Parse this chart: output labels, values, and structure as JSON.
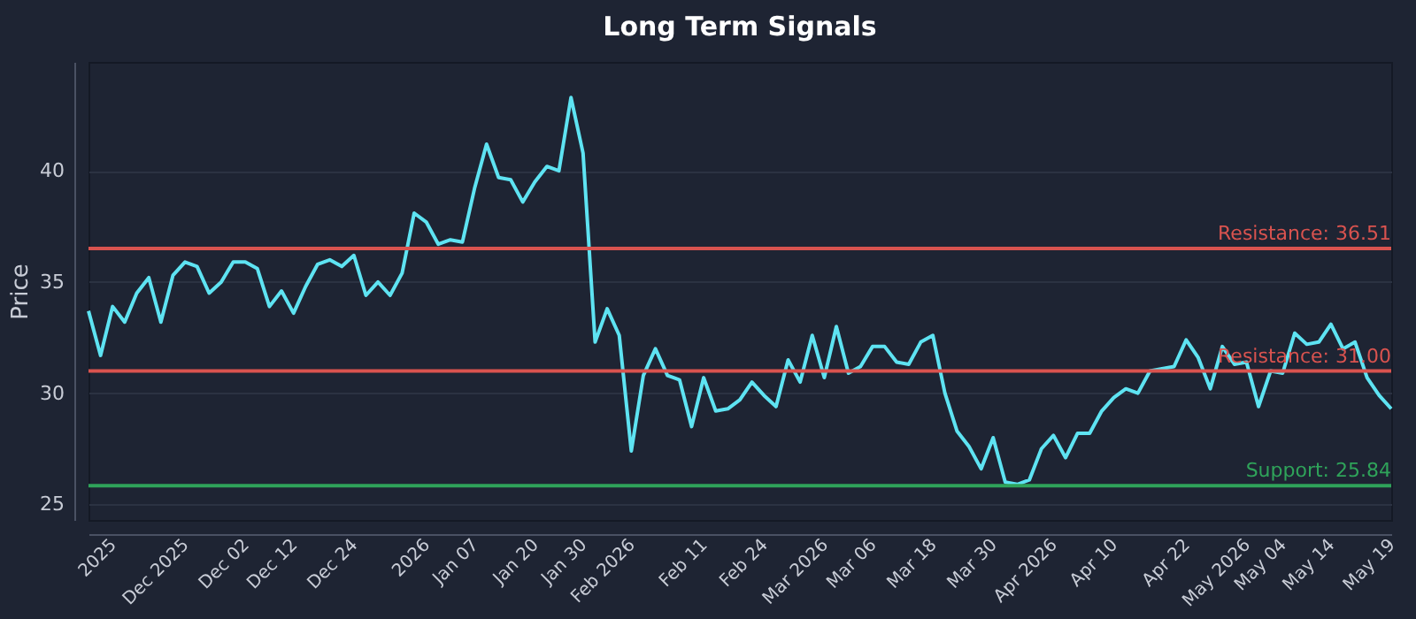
{
  "chart_data": {
    "type": "line",
    "title": "Long Term Signals",
    "ylabel": "Price",
    "categories": [
      null,
      null,
      "2025",
      null,
      null,
      null,
      null,
      null,
      "Dec 2025",
      null,
      null,
      null,
      null,
      "Dec 02",
      null,
      null,
      null,
      "Dec 12",
      null,
      null,
      null,
      null,
      "Dec 24",
      null,
      null,
      null,
      null,
      null,
      "2026",
      null,
      null,
      null,
      "Jan 07",
      null,
      null,
      null,
      null,
      "Jan 20",
      null,
      null,
      null,
      "Jan 30",
      null,
      null,
      null,
      "Feb 2026",
      null,
      null,
      null,
      null,
      null,
      "Feb 11",
      null,
      null,
      null,
      null,
      "Feb 24",
      null,
      null,
      null,
      null,
      "Mar 2026",
      null,
      null,
      null,
      "Mar 06",
      null,
      null,
      null,
      null,
      "Mar 18",
      null,
      null,
      null,
      null,
      "Mar 30",
      null,
      null,
      null,
      null,
      "Apr 2026",
      null,
      null,
      null,
      null,
      "Apr 10",
      null,
      null,
      null,
      null,
      null,
      "Apr 22",
      null,
      null,
      null,
      null,
      "May 2026",
      null,
      null,
      "May 04",
      null,
      null,
      null,
      "May 14",
      null,
      null,
      null,
      null,
      "May 19"
    ],
    "series": [
      {
        "color": "#5ee3f2",
        "values": [
          33.7,
          31.7,
          33.9,
          33.2,
          34.5,
          35.2,
          33.2,
          35.3,
          35.9,
          35.7,
          34.5,
          35.0,
          35.9,
          35.9,
          35.6,
          33.9,
          34.6,
          33.6,
          34.8,
          35.8,
          36.0,
          35.7,
          36.2,
          34.4,
          35.0,
          34.4,
          35.4,
          38.1,
          37.7,
          36.7,
          36.9,
          36.8,
          39.2,
          41.2,
          39.7,
          39.6,
          38.6,
          39.5,
          40.2,
          40.0,
          43.3,
          40.8,
          32.3,
          33.8,
          32.6,
          27.4,
          30.8,
          32.0,
          30.8,
          30.6,
          28.5,
          30.7,
          29.2,
          29.3,
          29.7,
          30.5,
          29.9,
          29.4,
          31.5,
          30.5,
          32.6,
          30.7,
          33.0,
          30.9,
          31.2,
          32.1,
          32.1,
          31.4,
          31.3,
          32.3,
          32.6,
          30.0,
          28.3,
          27.6,
          26.6,
          28.0,
          26.0,
          25.9,
          26.1,
          27.5,
          28.1,
          27.1,
          28.2,
          28.2,
          29.2,
          29.8,
          30.2,
          30.0,
          31.0,
          31.1,
          31.2,
          32.4,
          31.6,
          30.2,
          32.1,
          31.3,
          31.4,
          29.4,
          31.0,
          30.9,
          32.7,
          32.2,
          32.3,
          33.1,
          32.0,
          32.3,
          30.7,
          29.9,
          29.3
        ]
      }
    ],
    "ylim": [
      24.3,
      44.9
    ],
    "yticks": [
      25,
      30,
      35,
      40
    ],
    "grid": "y",
    "marker": "none",
    "line_style": "solid",
    "ref_lines": [
      {
        "axis": "y",
        "value": 36.51,
        "label": "Resistance: 36.51",
        "color": "#d9534f"
      },
      {
        "axis": "y",
        "value": 31.0,
        "label": "Resistance: 31.00",
        "color": "#d9534f"
      },
      {
        "axis": "y",
        "value": 25.84,
        "label": "Support: 25.84",
        "color": "#2fa35a"
      }
    ]
  }
}
